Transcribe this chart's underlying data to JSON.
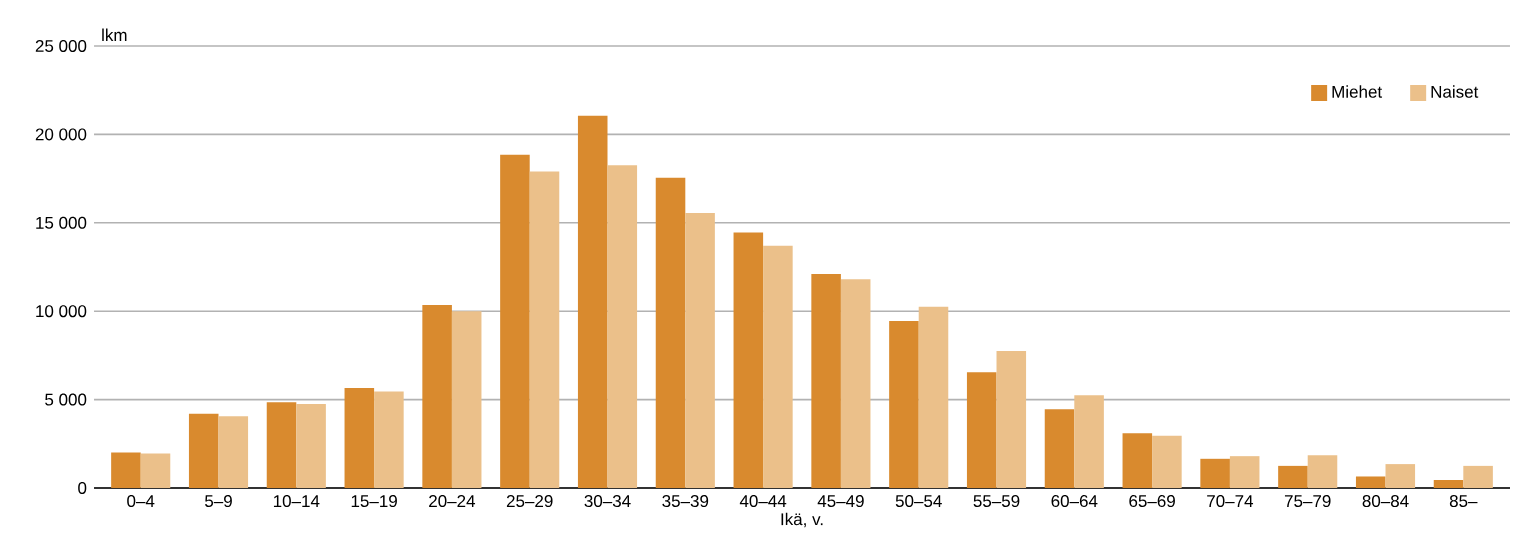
{
  "chart_data": {
    "type": "bar",
    "xlabel": "Ikä, v.",
    "ylabel": "lkm",
    "categories": [
      "0–4",
      "5–9",
      "10–14",
      "15–19",
      "20–24",
      "25–29",
      "30–34",
      "35–39",
      "40–44",
      "45–49",
      "50–54",
      "55–59",
      "60–64",
      "65–69",
      "70–74",
      "75–79",
      "80–84",
      "85–"
    ],
    "series": [
      {
        "name": "Miehet",
        "color": "#d98a2e",
        "values": [
          2000,
          4200,
          4850,
          5650,
          10350,
          18850,
          21050,
          17550,
          14450,
          12100,
          9450,
          6550,
          4450,
          3100,
          1650,
          1250,
          650,
          450
        ]
      },
      {
        "name": "Naiset",
        "color": "#ebc08a",
        "values": [
          1950,
          4050,
          4750,
          5450,
          10000,
          17900,
          18250,
          15550,
          13700,
          11800,
          10250,
          7750,
          5250,
          2950,
          1800,
          1850,
          1350,
          1250
        ]
      }
    ],
    "ylim": [
      0,
      25000
    ],
    "yticks": [
      {
        "value": 0,
        "label": "0"
      },
      {
        "value": 5000,
        "label": "5 000"
      },
      {
        "value": 10000,
        "label": "10 000"
      },
      {
        "value": 15000,
        "label": "15 000"
      },
      {
        "value": 20000,
        "label": "20 000"
      },
      {
        "value": 25000,
        "label": "25 000"
      }
    ],
    "grid": "y",
    "legend": "top right"
  }
}
